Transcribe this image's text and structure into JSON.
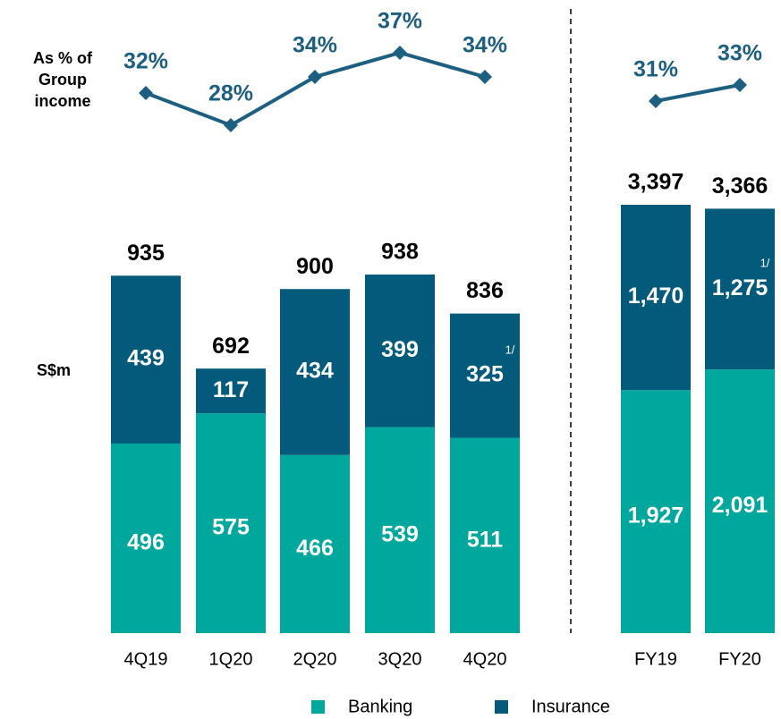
{
  "chart_data": [
    {
      "type": "bar",
      "stacked": true,
      "ylabel": "S$m",
      "y2label": "As % of Group income",
      "categories": [
        "4Q19",
        "1Q20",
        "2Q20",
        "3Q20",
        "4Q20"
      ],
      "series": [
        {
          "name": "Banking",
          "color": "#00a79d",
          "values": [
            496,
            575,
            466,
            539,
            511
          ]
        },
        {
          "name": "Insurance",
          "color": "#035a7a",
          "values": [
            439,
            117,
            434,
            399,
            325
          ],
          "notes": [
            null,
            null,
            null,
            null,
            "1/"
          ]
        }
      ],
      "totals": [
        935,
        692,
        900,
        938,
        836
      ],
      "line": {
        "color": "#1c5f80",
        "axis": "y2",
        "values": [
          32,
          28,
          34,
          37,
          34
        ],
        "value_labels": [
          "32%",
          "28%",
          "34%",
          "37%",
          "34%"
        ]
      }
    },
    {
      "type": "bar",
      "stacked": true,
      "categories": [
        "FY19",
        "FY20"
      ],
      "series": [
        {
          "color": "#00a79d",
          "values": [
            1927,
            2091
          ],
          "value_labels": [
            "1,927",
            "2,091"
          ]
        },
        {
          "color": "#035a7a",
          "values": [
            1470,
            1275
          ],
          "value_labels": [
            "1,470",
            "1,275"
          ],
          "notes": [
            null,
            "1/"
          ]
        }
      ],
      "totals": [
        3397,
        3366
      ],
      "total_labels": [
        "3,397",
        "3,366"
      ],
      "line": {
        "color": "#1c5f80",
        "axis": "y2",
        "values": [
          31,
          33
        ],
        "value_labels": [
          "31%",
          "33%"
        ]
      }
    }
  ]
}
